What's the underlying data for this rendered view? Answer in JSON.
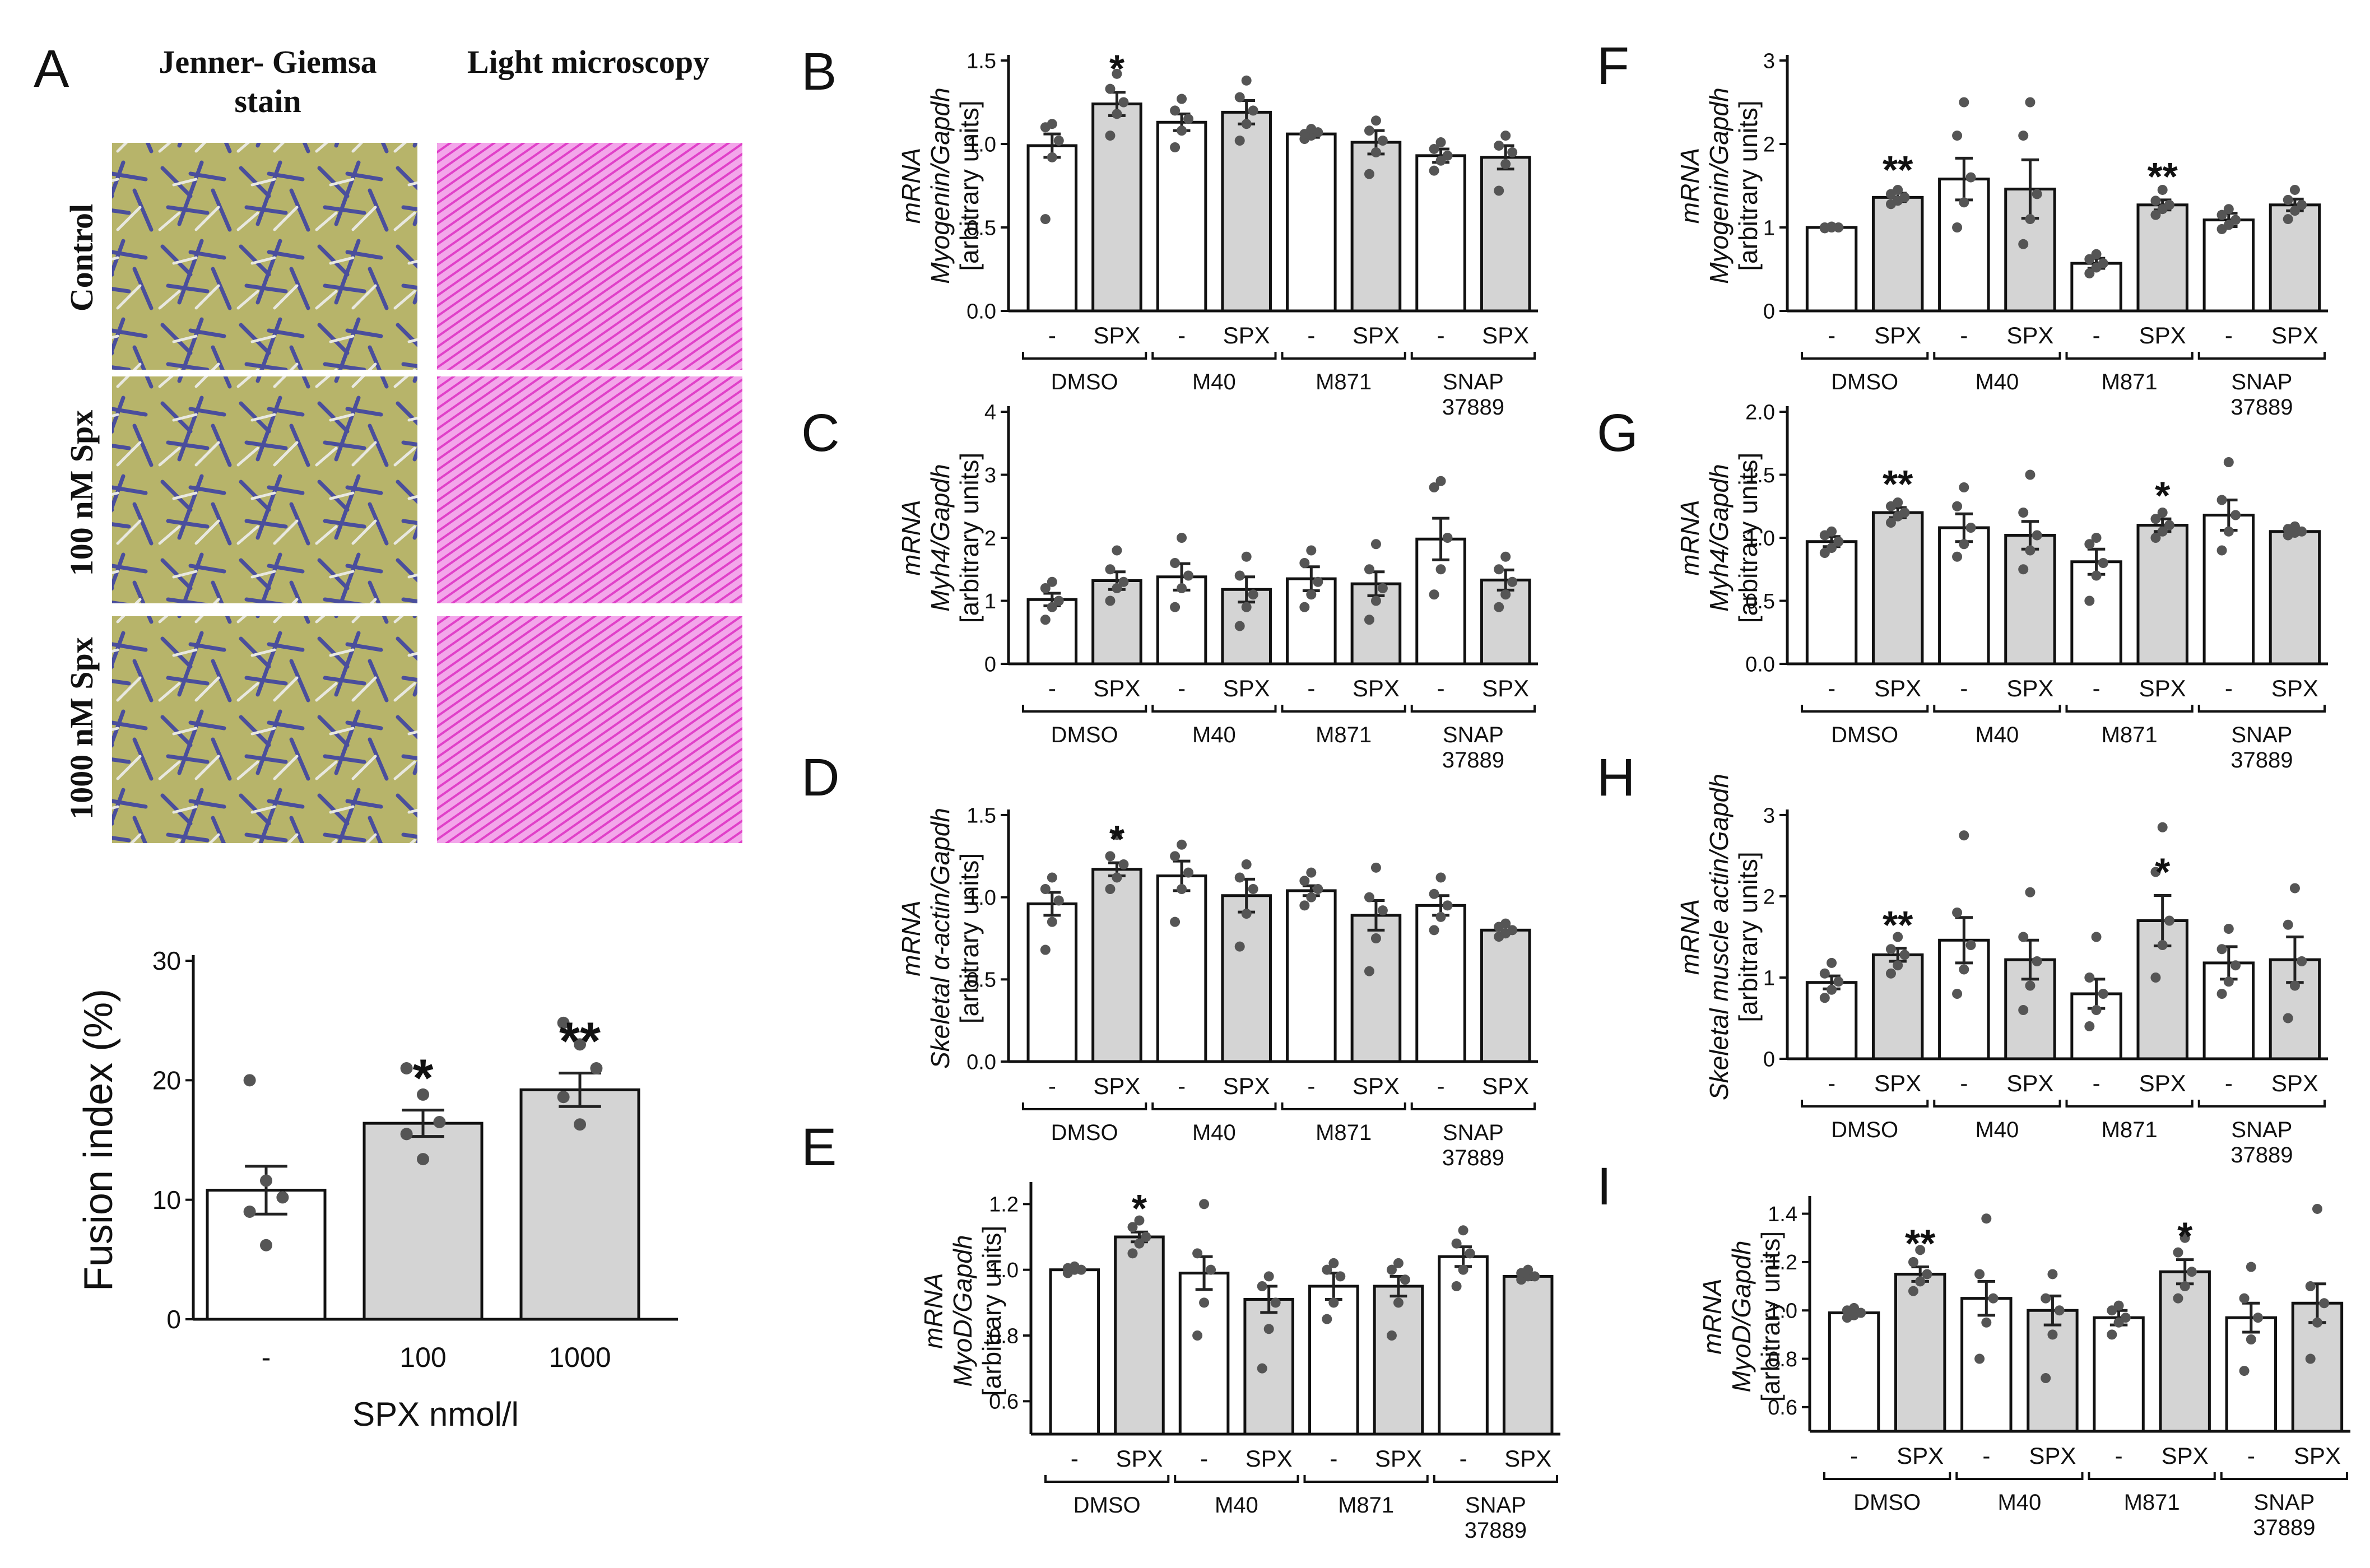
{
  "colors": {
    "bar_control": "#ffffff",
    "bar_spx": "#d4d4d4",
    "stroke": "#111111",
    "point": "#555555",
    "stain_bg": "#b7b46a",
    "stain_cell": "#4a4e9c",
    "lm_bg": "#f09ce6",
    "lm_fiber": "#e040c8"
  },
  "panel_a": {
    "label": "A",
    "col_headers": [
      "Jenner- Giemsa stain",
      "Light microscopy"
    ],
    "row_labels": [
      "Control",
      "100 nM Spx",
      "1000 nM Spx"
    ],
    "image_names": [
      "jenner-giemsa-micrograph",
      "light-microscopy-micrograph"
    ]
  },
  "chart_data": [
    {
      "id": "A",
      "type": "bar",
      "ylabel": "Fusion index (%)",
      "xlabel": "SPX nmol/l",
      "categories": [
        "-",
        "100",
        "1000"
      ],
      "values": [
        10.8,
        16.4,
        19.2
      ],
      "sem": [
        2.0,
        1.1,
        1.4
      ],
      "points": [
        [
          20,
          11.6,
          10.2,
          9.0,
          6.2
        ],
        [
          21,
          18.8,
          16.5,
          15.5,
          13.4
        ],
        [
          24.8,
          23.0,
          21.0,
          18.6,
          16.3
        ]
      ],
      "ylim": [
        0,
        30
      ],
      "yticks": [
        "0",
        "10",
        "20",
        "30"
      ],
      "significance": [
        "",
        "*",
        "**"
      ]
    },
    {
      "id": "B",
      "type": "bar",
      "ylabel_lines": [
        "mRNA",
        "Myogenin/Gapdh",
        "[arbitrary units]"
      ],
      "categories": [
        "-",
        "SPX",
        "-",
        "SPX",
        "-",
        "SPX",
        "-",
        "SPX"
      ],
      "groups": [
        "DMSO",
        "M40",
        "M871",
        "SNAP 37889"
      ],
      "values": [
        0.99,
        1.24,
        1.13,
        1.19,
        1.06,
        1.01,
        0.93,
        0.92
      ],
      "sem": [
        0.07,
        0.07,
        0.05,
        0.07,
        0.02,
        0.07,
        0.04,
        0.07
      ],
      "points": [
        [
          0.55,
          0.92,
          1.02,
          1.1,
          1.12
        ],
        [
          1.05,
          1.18,
          1.25,
          1.33,
          1.42
        ],
        [
          0.98,
          1.08,
          1.15,
          1.2,
          1.27
        ],
        [
          1.02,
          1.12,
          1.2,
          1.28,
          1.38
        ],
        [
          1.03,
          1.05,
          1.07,
          1.06,
          1.09
        ],
        [
          0.82,
          0.95,
          1.02,
          1.08,
          1.14
        ],
        [
          0.84,
          0.9,
          0.93,
          0.97,
          1.01
        ],
        [
          0.72,
          0.88,
          0.95,
          0.99,
          1.05
        ]
      ],
      "ylim": [
        0,
        1.5
      ],
      "yticks": [
        "0.0",
        "0.5",
        "1.0",
        "1.5"
      ],
      "significance": [
        "",
        "*",
        "",
        "",
        "",
        "",
        "",
        ""
      ]
    },
    {
      "id": "C",
      "type": "bar",
      "ylabel_lines": [
        "mRNA",
        "Myh4/Gapdh",
        "[arbitrary units]"
      ],
      "categories": [
        "-",
        "SPX",
        "-",
        "SPX",
        "-",
        "SPX",
        "-",
        "SPX"
      ],
      "groups": [
        "DMSO",
        "M40",
        "M871",
        "SNAP 37889"
      ],
      "values": [
        1.02,
        1.32,
        1.38,
        1.18,
        1.35,
        1.27,
        1.98,
        1.33
      ],
      "sem": [
        0.1,
        0.14,
        0.21,
        0.2,
        0.19,
        0.19,
        0.33,
        0.16
      ],
      "points": [
        [
          0.7,
          0.9,
          1.0,
          1.2,
          1.3
        ],
        [
          1.0,
          1.2,
          1.3,
          1.5,
          1.8
        ],
        [
          0.9,
          1.2,
          1.4,
          1.6,
          2.0
        ],
        [
          0.6,
          0.9,
          1.1,
          1.4,
          1.7
        ],
        [
          0.9,
          1.1,
          1.3,
          1.6,
          1.8
        ],
        [
          0.7,
          1.0,
          1.2,
          1.5,
          1.9
        ],
        [
          1.1,
          1.5,
          2.0,
          2.8,
          2.9
        ],
        [
          0.9,
          1.1,
          1.3,
          1.5,
          1.7
        ]
      ],
      "ylim": [
        0,
        4
      ],
      "yticks": [
        "0",
        "1",
        "2",
        "3",
        "4"
      ],
      "significance": [
        "",
        "",
        "",
        "",
        "",
        "",
        "",
        ""
      ]
    },
    {
      "id": "D",
      "type": "bar",
      "ylabel_lines": [
        "mRNA",
        "Skeletal α-actin/Gapdh",
        "[arbitrary units]"
      ],
      "categories": [
        "-",
        "SPX",
        "-",
        "SPX",
        "-",
        "SPX",
        "-",
        "SPX"
      ],
      "groups": [
        "DMSO",
        "M40",
        "M871",
        "SNAP 37889"
      ],
      "values": [
        0.96,
        1.17,
        1.13,
        1.01,
        1.04,
        0.89,
        0.95,
        0.8
      ],
      "sem": [
        0.07,
        0.04,
        0.09,
        0.1,
        0.03,
        0.09,
        0.06,
        0.02
      ],
      "points": [
        [
          0.68,
          0.85,
          0.98,
          1.05,
          1.12
        ],
        [
          1.05,
          1.12,
          1.2,
          1.25,
          1.38
        ],
        [
          0.85,
          1.05,
          1.15,
          1.25,
          1.32
        ],
        [
          0.7,
          0.9,
          1.05,
          1.12,
          1.2
        ],
        [
          0.95,
          1.0,
          1.05,
          1.1,
          1.15
        ],
        [
          0.55,
          0.75,
          0.92,
          1.0,
          1.18
        ],
        [
          0.8,
          0.88,
          0.95,
          1.02,
          1.12
        ],
        [
          0.76,
          0.78,
          0.8,
          0.82,
          0.84
        ]
      ],
      "ylim": [
        0,
        1.5
      ],
      "yticks": [
        "0.0",
        "0.5",
        "1.0",
        "1.5"
      ],
      "significance": [
        "",
        "*",
        "",
        "",
        "",
        "",
        "",
        ""
      ]
    },
    {
      "id": "E",
      "type": "bar",
      "ylabel_lines": [
        "mRNA",
        "MyoD/Gapdh",
        "[arbitrary units]"
      ],
      "categories": [
        "-",
        "SPX",
        "-",
        "SPX",
        "-",
        "SPX",
        "-",
        "SPX"
      ],
      "groups": [
        "DMSO",
        "M40",
        "M871",
        "SNAP 37889"
      ],
      "values": [
        1.0,
        1.1,
        0.99,
        0.91,
        0.95,
        0.95,
        1.04,
        0.98
      ],
      "sem": [
        0.005,
        0.015,
        0.05,
        0.04,
        0.04,
        0.03,
        0.03,
        0.01
      ],
      "points": [
        [
          0.99,
          1.0,
          1.0,
          1.005,
          1.01
        ],
        [
          1.05,
          1.08,
          1.1,
          1.13,
          1.15
        ],
        [
          0.8,
          0.9,
          1.0,
          1.05,
          1.2
        ],
        [
          0.7,
          0.82,
          0.9,
          0.95,
          0.98
        ],
        [
          0.85,
          0.9,
          0.98,
          1.0,
          1.02
        ],
        [
          0.8,
          0.9,
          0.97,
          1.0,
          1.02
        ],
        [
          0.95,
          1.0,
          1.05,
          1.08,
          1.12
        ],
        [
          0.97,
          0.98,
          0.98,
          0.99,
          1.0
        ]
      ],
      "ylim": [
        0.5,
        1.25
      ],
      "ybase": 0.5,
      "yticks": [
        "0.6",
        "0.8",
        "1.0",
        "1.2"
      ],
      "yticks_values": [
        0.6,
        0.8,
        1.0,
        1.2
      ],
      "significance": [
        "",
        "*",
        "",
        "",
        "",
        "",
        "",
        ""
      ]
    },
    {
      "id": "F",
      "type": "bar",
      "ylabel_lines": [
        "mRNA",
        "Myogenin/Gapdh",
        "[arbitrary units]"
      ],
      "categories": [
        "-",
        "SPX",
        "-",
        "SPX",
        "-",
        "SPX",
        "-",
        "SPX"
      ],
      "groups": [
        "DMSO",
        "M40",
        "M871",
        "SNAP 37889"
      ],
      "values": [
        1.0,
        1.36,
        1.58,
        1.46,
        0.57,
        1.27,
        1.09,
        1.27
      ],
      "sem": [
        0.01,
        0.05,
        0.25,
        0.35,
        0.06,
        0.06,
        0.08,
        0.07
      ],
      "points": [
        [
          0.99,
          1.0,
          1.0,
          1.0,
          1.01
        ],
        [
          1.28,
          1.32,
          1.36,
          1.4,
          1.45
        ],
        [
          1.0,
          1.3,
          1.6,
          2.1,
          2.5
        ],
        [
          0.8,
          1.1,
          1.4,
          2.1,
          2.5
        ],
        [
          0.45,
          0.52,
          0.57,
          0.62,
          0.68
        ],
        [
          1.15,
          1.22,
          1.27,
          1.32,
          1.45
        ],
        [
          0.98,
          1.03,
          1.09,
          1.15,
          1.22
        ],
        [
          1.1,
          1.2,
          1.27,
          1.33,
          1.45
        ]
      ],
      "ylim": [
        0,
        3
      ],
      "yticks": [
        "0",
        "1",
        "2",
        "3"
      ],
      "significance": [
        "",
        "**",
        "",
        "",
        "",
        "**",
        "",
        ""
      ]
    },
    {
      "id": "G",
      "type": "bar",
      "ylabel_lines": [
        "mRNA",
        "Myh4/Gapdh",
        "[arbitrary units]"
      ],
      "categories": [
        "-",
        "SPX",
        "-",
        "SPX",
        "-",
        "SPX",
        "-",
        "SPX"
      ],
      "groups": [
        "DMSO",
        "M40",
        "M871",
        "SNAP 37889"
      ],
      "values": [
        0.97,
        1.2,
        1.08,
        1.02,
        0.81,
        1.1,
        1.18,
        1.05
      ],
      "sem": [
        0.04,
        0.04,
        0.11,
        0.11,
        0.1,
        0.05,
        0.12,
        0.02
      ],
      "points": [
        [
          0.88,
          0.92,
          0.97,
          1.02,
          1.05
        ],
        [
          1.12,
          1.17,
          1.2,
          1.25,
          1.28
        ],
        [
          0.85,
          0.95,
          1.08,
          1.25,
          1.4
        ],
        [
          0.75,
          0.9,
          1.02,
          1.2,
          1.5
        ],
        [
          0.5,
          0.7,
          0.8,
          0.95,
          1.0
        ],
        [
          1.0,
          1.05,
          1.1,
          1.15,
          1.2
        ],
        [
          0.9,
          1.05,
          1.18,
          1.3,
          1.6
        ],
        [
          1.02,
          1.04,
          1.05,
          1.07,
          1.09
        ]
      ],
      "ylim": [
        0,
        2
      ],
      "yticks": [
        "0.0",
        "0.5",
        "1.0",
        "1.5",
        "2.0"
      ],
      "significance": [
        "",
        "**",
        "",
        "",
        "",
        "*",
        "",
        ""
      ]
    },
    {
      "id": "H",
      "type": "bar",
      "ylabel_lines": [
        "mRNA",
        "Skeletal muscle actin/Gapdh",
        "[arbitrary units]"
      ],
      "categories": [
        "-",
        "SPX",
        "-",
        "SPX",
        "-",
        "SPX",
        "-",
        "SPX"
      ],
      "groups": [
        "DMSO",
        "M40",
        "M871",
        "SNAP 37889"
      ],
      "values": [
        0.94,
        1.28,
        1.46,
        1.22,
        0.8,
        1.7,
        1.18,
        1.22
      ],
      "sem": [
        0.08,
        0.08,
        0.28,
        0.24,
        0.18,
        0.31,
        0.2,
        0.28
      ],
      "points": [
        [
          0.75,
          0.85,
          0.95,
          1.05,
          1.18
        ],
        [
          1.05,
          1.15,
          1.28,
          1.35,
          1.5
        ],
        [
          0.8,
          1.1,
          1.4,
          1.8,
          2.75
        ],
        [
          0.6,
          0.9,
          1.2,
          1.5,
          2.05
        ],
        [
          0.4,
          0.6,
          0.8,
          1.0,
          1.5
        ],
        [
          1.0,
          1.4,
          1.7,
          2.3,
          2.85
        ],
        [
          0.8,
          0.95,
          1.15,
          1.35,
          1.6
        ],
        [
          0.5,
          0.9,
          1.2,
          1.65,
          2.1
        ]
      ],
      "ylim": [
        0,
        3
      ],
      "yticks": [
        "0",
        "1",
        "2",
        "3"
      ],
      "significance": [
        "",
        "**",
        "",
        "",
        "",
        "*",
        "",
        ""
      ]
    },
    {
      "id": "I",
      "type": "bar",
      "ylabel_lines": [
        "mRNA",
        "MyoD/Gapdh",
        "[arbitrary units]"
      ],
      "categories": [
        "-",
        "SPX",
        "-",
        "SPX",
        "-",
        "SPX",
        "-",
        "SPX"
      ],
      "groups": [
        "DMSO",
        "M40",
        "M871",
        "SNAP 37889"
      ],
      "values": [
        0.99,
        1.15,
        1.05,
        1.0,
        0.97,
        1.16,
        0.97,
        1.03
      ],
      "sem": [
        0.01,
        0.03,
        0.07,
        0.06,
        0.03,
        0.05,
        0.06,
        0.08
      ],
      "points": [
        [
          0.97,
          0.98,
          0.99,
          1.0,
          1.01
        ],
        [
          1.08,
          1.12,
          1.15,
          1.2,
          1.25
        ],
        [
          0.8,
          0.95,
          1.05,
          1.15,
          1.38
        ],
        [
          0.72,
          0.9,
          1.0,
          1.05,
          1.15
        ],
        [
          0.9,
          0.95,
          0.97,
          1.0,
          1.02
        ],
        [
          1.05,
          1.1,
          1.16,
          1.24,
          1.3
        ],
        [
          0.75,
          0.88,
          0.97,
          1.05,
          1.18
        ],
        [
          0.8,
          0.95,
          1.03,
          1.1,
          1.42
        ]
      ],
      "ylim": [
        0.5,
        1.45
      ],
      "ybase": 0.5,
      "yticks": [
        "0.6",
        "0.8",
        "1.0",
        "1.2",
        "1.4"
      ],
      "yticks_values": [
        0.6,
        0.8,
        1.0,
        1.2,
        1.4
      ],
      "significance": [
        "",
        "**",
        "",
        "",
        "",
        "*",
        "",
        ""
      ]
    }
  ]
}
